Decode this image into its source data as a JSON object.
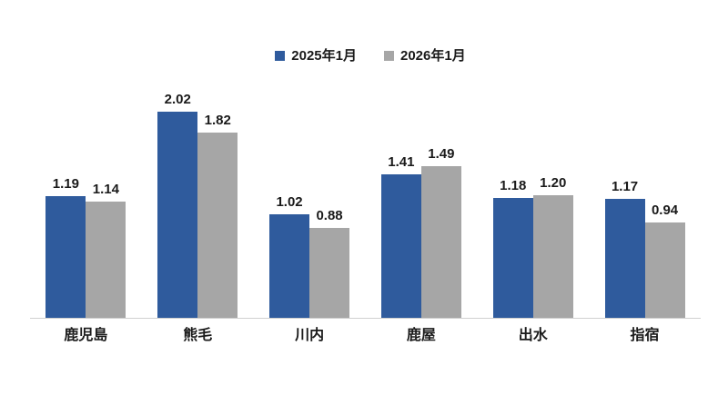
{
  "chart_data": {
    "type": "bar",
    "categories": [
      "鹿児島",
      "熊毛",
      "川内",
      "鹿屋",
      "出水",
      "指宿"
    ],
    "series": [
      {
        "name": "2025年1月",
        "color": "#2F5B9D",
        "values": [
          1.19,
          2.02,
          1.02,
          1.41,
          1.18,
          1.17
        ]
      },
      {
        "name": "2026年1月",
        "color": "#A6A6A6",
        "values": [
          1.14,
          1.82,
          0.88,
          1.49,
          1.2,
          0.94
        ]
      }
    ],
    "title": "",
    "xlabel": "",
    "ylabel": "",
    "ylim": [
      0,
      2.2
    ],
    "grid": false,
    "legend_position": "top-center",
    "value_label_format": "0.00",
    "axis_line_color": "#d0d0d0",
    "text_color": "#1a1a1a",
    "background_color": "#ffffff"
  }
}
